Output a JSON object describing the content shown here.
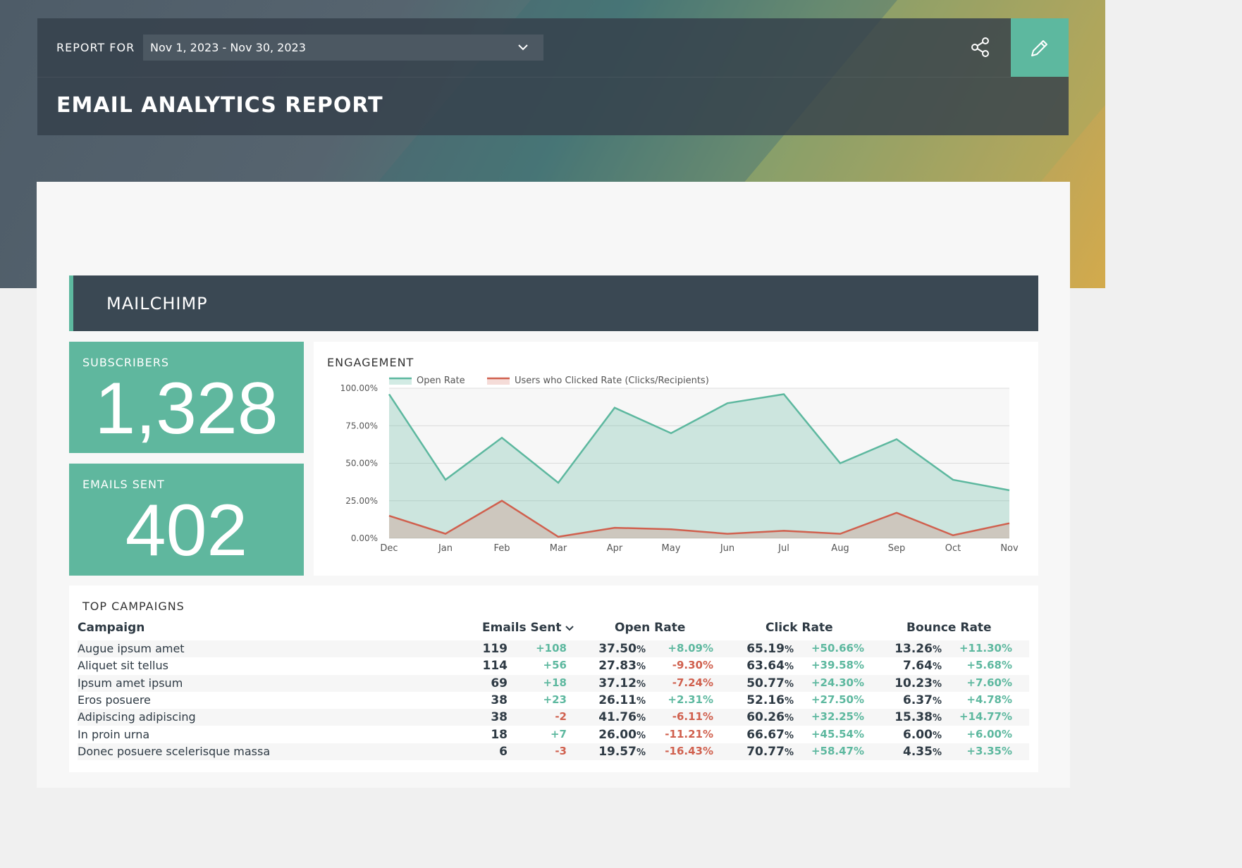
{
  "header": {
    "report_for_label": "REPORT FOR",
    "date_range": "Nov 1, 2023 - Nov 30, 2023",
    "title": "EMAIL ANALYTICS REPORT"
  },
  "section": {
    "title": "MAILCHIMP"
  },
  "kpis": {
    "subscribers": {
      "label": "SUBSCRIBERS",
      "value": "1,328"
    },
    "emails_sent": {
      "label": "EMAILS SENT",
      "value": "402"
    }
  },
  "engagement": {
    "title": "ENGAGEMENT",
    "colors": {
      "open": "#5db89f",
      "click": "#d0604e"
    }
  },
  "chart_data": {
    "type": "area",
    "title": "ENGAGEMENT",
    "categories": [
      "Dec",
      "Jan",
      "Feb",
      "Mar",
      "Apr",
      "May",
      "Jun",
      "Jul",
      "Aug",
      "Sep",
      "Oct",
      "Nov"
    ],
    "series": [
      {
        "name": "Open Rate",
        "values": [
          96,
          39,
          67,
          37,
          87,
          70,
          90,
          96,
          50,
          66,
          39,
          32
        ]
      },
      {
        "name": "Users who Clicked Rate (Clicks/Recipients)",
        "values": [
          15,
          3,
          25,
          1,
          7,
          6,
          3,
          5,
          3,
          17,
          2,
          10
        ]
      }
    ],
    "yticks": [
      "100.00%",
      "75.00%",
      "50.00%",
      "25.00%",
      "0.00%"
    ],
    "ylim": [
      0,
      100
    ],
    "grid": true,
    "legend": "top"
  },
  "campaigns": {
    "title": "TOP CAMPAIGNS",
    "columns": {
      "campaign": "Campaign",
      "emails_sent": "Emails Sent",
      "open_rate": "Open Rate",
      "click_rate": "Click Rate",
      "bounce_rate": "Bounce Rate"
    },
    "rows": [
      {
        "name": "Augue ipsum amet",
        "sent": "119",
        "sent_delta": "+108",
        "open": "37.50",
        "open_delta": "+8.09%",
        "click": "65.19",
        "click_delta": "+50.66%",
        "bounce": "13.26",
        "bounce_delta": "+11.30%"
      },
      {
        "name": "Aliquet sit tellus",
        "sent": "114",
        "sent_delta": "+56",
        "open": "27.83",
        "open_delta": "-9.30%",
        "click": "63.64",
        "click_delta": "+39.58%",
        "bounce": "7.64",
        "bounce_delta": "+5.68%"
      },
      {
        "name": "Ipsum amet ipsum",
        "sent": "69",
        "sent_delta": "+18",
        "open": "37.12",
        "open_delta": "-7.24%",
        "click": "50.77",
        "click_delta": "+24.30%",
        "bounce": "10.23",
        "bounce_delta": "+7.60%"
      },
      {
        "name": "Eros posuere",
        "sent": "38",
        "sent_delta": "+23",
        "open": "26.11",
        "open_delta": "+2.31%",
        "click": "52.16",
        "click_delta": "+27.50%",
        "bounce": "6.37",
        "bounce_delta": "+4.78%"
      },
      {
        "name": "Adipiscing adipiscing",
        "sent": "38",
        "sent_delta": "-2",
        "open": "41.76",
        "open_delta": "-6.11%",
        "click": "60.26",
        "click_delta": "+32.25%",
        "bounce": "15.38",
        "bounce_delta": "+14.77%"
      },
      {
        "name": "In proin urna",
        "sent": "18",
        "sent_delta": "+7",
        "open": "26.00",
        "open_delta": "-11.21%",
        "click": "66.67",
        "click_delta": "+45.54%",
        "bounce": "6.00",
        "bounce_delta": "+6.00%"
      },
      {
        "name": "Donec posuere scelerisque massa",
        "sent": "6",
        "sent_delta": "-3",
        "open": "19.57",
        "open_delta": "-16.43%",
        "click": "70.77",
        "click_delta": "+58.47%",
        "bounce": "4.35",
        "bounce_delta": "+3.35%"
      }
    ]
  }
}
